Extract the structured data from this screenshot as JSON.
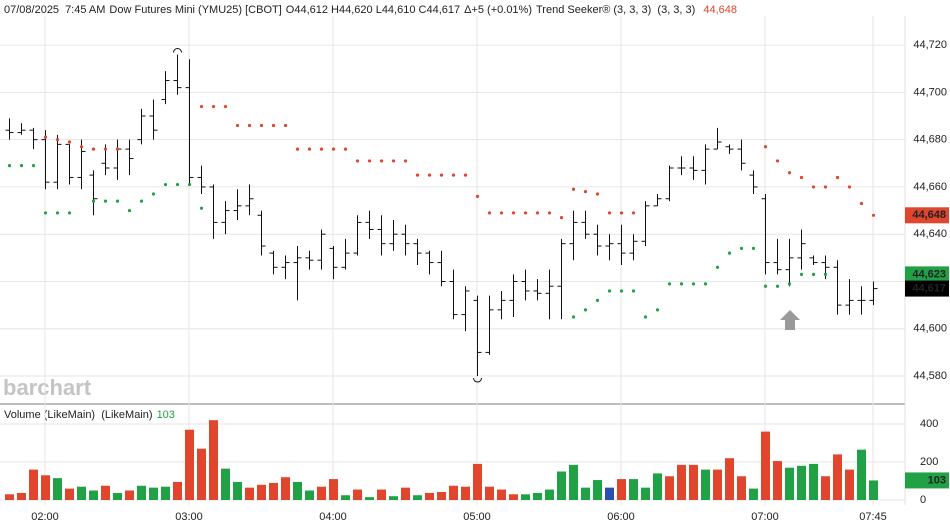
{
  "header": {
    "date": "07/08/2025",
    "time": "7:45 AM",
    "symbol": "Dow Futures Mini (YMU25) [CBOT]",
    "ohlc": "O44,612 H44,620 L44,610 C44,617",
    "change": "Δ+5 (+0.01%)",
    "study": "Trend Seeker® (3, 3, 3)  (3, 3, 3)",
    "study_value": "44,648",
    "study_value_color": "#e0452e"
  },
  "watermark": "barchart",
  "chart_data": [
    {
      "type": "ohlc",
      "ylim": [
        44568.6,
        44732.3
      ],
      "yticks": [
        {
          "value": 44580,
          "label": "44,580"
        },
        {
          "value": 44600,
          "label": "44,600"
        },
        {
          "value": 44620,
          "label": "44,620"
        },
        {
          "value": 44640,
          "label": "44,640"
        },
        {
          "value": 44660,
          "label": "44,660"
        },
        {
          "value": 44680,
          "label": "44,680"
        },
        {
          "value": 44700,
          "label": "44,700"
        },
        {
          "value": 44720,
          "label": "44,720"
        }
      ],
      "grid": true,
      "color": "#111111",
      "open": [
        44684,
        44683,
        44684,
        44680,
        44662,
        44678,
        44664,
        44665,
        44670,
        44668,
        44676,
        44680,
        44690,
        44697,
        44705,
        44702,
        44664,
        44660,
        44645,
        44650,
        44652,
        44648,
        44632,
        44626,
        44628,
        44630,
        44629,
        44634,
        44626,
        44632,
        44645,
        44642,
        44636,
        44640,
        44636,
        44632,
        44628,
        44620,
        44606,
        44612,
        44590,
        44608,
        44612,
        44620,
        44616,
        44615,
        44618,
        44636,
        44645,
        44640,
        44635,
        44636,
        44632,
        44637,
        44652,
        44655,
        44668,
        44668,
        44667,
        44676,
        44677,
        44676,
        44665,
        44655,
        44628,
        44625,
        44630,
        44630,
        44628,
        44626,
        44610,
        44612,
        44612
      ],
      "high": [
        44689,
        44687,
        44685,
        44684,
        44682,
        44678,
        44680,
        44667,
        44678,
        44680,
        44680,
        44693,
        44697,
        44709,
        44716,
        44714,
        44669,
        44661,
        44654,
        44659,
        44661,
        44650,
        44633,
        44631,
        44635,
        44633,
        44642,
        44635,
        44638,
        44648,
        44650,
        44648,
        44646,
        44644,
        44638,
        44633,
        44633,
        44625,
        44618,
        44614,
        44614,
        44616,
        44623,
        44625,
        44621,
        44625,
        44638,
        44650,
        44650,
        44644,
        44640,
        44644,
        44640,
        44654,
        44657,
        44669,
        44673,
        44673,
        44678,
        44685,
        44678,
        44680,
        44667,
        44657,
        44638,
        44638,
        44642,
        44631,
        44631,
        44629,
        44621,
        44618,
        44620
      ],
      "low": [
        44680,
        44682,
        44676,
        44659,
        44659,
        44661,
        44659,
        44648,
        44665,
        44663,
        44665,
        44678,
        44680,
        44695,
        44699,
        44661,
        44657,
        44638,
        44640,
        44646,
        44648,
        44631,
        44623,
        44621,
        44612,
        44625,
        44625,
        44621,
        44625,
        44631,
        44638,
        44631,
        44633,
        44631,
        44627,
        44623,
        44618,
        44604,
        44599,
        44580,
        44589,
        44604,
        44605,
        44612,
        44612,
        44604,
        44604,
        44629,
        44638,
        44631,
        44629,
        44627,
        44629,
        44635,
        44652,
        44654,
        44665,
        44663,
        44661,
        44676,
        44674,
        44667,
        44657,
        44623,
        44623,
        44618,
        44625,
        44627,
        44621,
        44606,
        44606,
        44606,
        44610
      ],
      "close": [
        44683,
        44684,
        44680,
        44662,
        44678,
        44664,
        44675,
        44655,
        44668,
        44676,
        44672,
        44690,
        44684,
        44705,
        44702,
        44664,
        44660,
        44645,
        44650,
        44652,
        44655,
        44635,
        44626,
        44628,
        44630,
        44629,
        44640,
        44626,
        44632,
        44645,
        44642,
        44636,
        44640,
        44636,
        44632,
        44628,
        44620,
        44606,
        44616,
        44590,
        44608,
        44612,
        44620,
        44616,
        44615,
        44618,
        44636,
        44645,
        44640,
        44635,
        44636,
        44632,
        44637,
        44652,
        44655,
        44668,
        44668,
        44667,
        44676,
        44679,
        44676,
        44670,
        44660,
        44628,
        44625,
        44630,
        44636,
        44628,
        44626,
        44610,
        44612,
        44612,
        44617
      ],
      "indicators": [
        {
          "color": "#e0452e",
          "values": [
            null,
            null,
            null,
            44681,
            44680,
            44679,
            44677,
            44676,
            44676,
            44676,
            null,
            null,
            null,
            null,
            null,
            null,
            44694,
            44694,
            44694,
            44686,
            44686,
            44686,
            44686,
            44686,
            44676,
            44676,
            44676,
            44676,
            44676,
            44671,
            44671,
            44671,
            44671,
            44671,
            44665,
            44665,
            44665,
            44665,
            44665,
            44656,
            44649,
            44649,
            44649,
            44649,
            44649,
            44649,
            44647,
            44659,
            44658,
            44657,
            44649,
            44649,
            44649,
            null,
            null,
            null,
            null,
            null,
            null,
            null,
            null,
            null,
            null,
            44677,
            44671,
            44666,
            44664,
            44660,
            44660,
            44664,
            44660,
            44653,
            44648
          ]
        },
        {
          "color": "#21a145",
          "values": [
            44669,
            44669,
            44669,
            44649,
            44649,
            44649,
            null,
            44654,
            44654,
            44654,
            44650,
            44654,
            44657,
            44661,
            44661,
            44661,
            44651,
            null,
            null,
            null,
            null,
            null,
            null,
            null,
            null,
            null,
            null,
            null,
            null,
            null,
            null,
            null,
            null,
            null,
            null,
            null,
            null,
            null,
            null,
            null,
            null,
            null,
            null,
            null,
            null,
            null,
            null,
            44605,
            44608,
            44612,
            44616,
            44616,
            44616,
            44605,
            44608,
            44619,
            44619,
            44619,
            44619,
            44626,
            44632,
            44634,
            44634,
            44618,
            44618,
            44619,
            44623,
            44623,
            44623,
            null,
            null,
            null,
            null
          ]
        }
      ],
      "value_labels": [
        {
          "value": 44648,
          "label": "44,648",
          "color": "#e0452e"
        },
        {
          "value": 44623,
          "label": "44,623",
          "color": "#21a145"
        },
        {
          "value": 44617,
          "label": "44,617",
          "color": "#000000"
        }
      ]
    },
    {
      "type": "bar",
      "title": "Volume (LikeMain)  (LikeMain)",
      "last_label": "103",
      "last_label_color": "#21a145",
      "ylim": [
        0,
        500
      ],
      "yticks": [
        0,
        200,
        400
      ],
      "grid": true,
      "categories": [
        null,
        null,
        null,
        "02:00",
        null,
        null,
        null,
        null,
        null,
        null,
        null,
        null,
        null,
        null,
        null,
        "03:00",
        null,
        null,
        null,
        null,
        null,
        null,
        null,
        null,
        null,
        null,
        null,
        "04:00",
        null,
        null,
        null,
        null,
        null,
        null,
        null,
        null,
        null,
        null,
        null,
        "05:00",
        null,
        null,
        null,
        null,
        null,
        null,
        null,
        null,
        null,
        null,
        null,
        "06:00",
        null,
        null,
        null,
        null,
        null,
        null,
        null,
        null,
        null,
        null,
        null,
        "07:00",
        null,
        null,
        null,
        null,
        null,
        null,
        null,
        null,
        "07:45"
      ],
      "values": [
        30,
        37,
        160,
        130,
        115,
        60,
        70,
        50,
        75,
        37,
        50,
        75,
        65,
        70,
        95,
        370,
        270,
        420,
        165,
        95,
        65,
        80,
        90,
        120,
        95,
        50,
        70,
        110,
        25,
        55,
        15,
        55,
        20,
        65,
        25,
        37,
        42,
        75,
        70,
        190,
        70,
        55,
        30,
        30,
        37,
        55,
        150,
        185,
        65,
        105,
        65,
        110,
        110,
        65,
        140,
        125,
        185,
        185,
        160,
        160,
        220,
        125,
        60,
        360,
        205,
        170,
        180,
        190,
        125,
        240,
        160,
        265,
        103
      ],
      "colors": [
        "#e0452e",
        "#e0452e",
        "#e0452e",
        "#e0452e",
        "#21a145",
        "#e0452e",
        "#21a145",
        "#21a145",
        "#e0452e",
        "#21a145",
        "#e0452e",
        "#21a145",
        "#21a145",
        "#21a145",
        "#e0452e",
        "#e0452e",
        "#e0452e",
        "#e0452e",
        "#21a145",
        "#21a145",
        "#e0452e",
        "#e0452e",
        "#e0452e",
        "#e0452e",
        "#21a145",
        "#21a145",
        "#e0452e",
        "#e0452e",
        "#21a145",
        "#e0452e",
        "#21a145",
        "#e0452e",
        "#21a145",
        "#e0452e",
        "#21a145",
        "#e0452e",
        "#e0452e",
        "#e0452e",
        "#e0452e",
        "#e0452e",
        "#e0452e",
        "#e0452e",
        "#e0452e",
        "#21a145",
        "#21a145",
        "#21a145",
        "#21a145",
        "#21a145",
        "#21a145",
        "#21a145",
        "#2a4fb0",
        "#e0452e",
        "#21a145",
        "#21a145",
        "#21a145",
        "#e0452e",
        "#e0452e",
        "#e0452e",
        "#21a145",
        "#e0452e",
        "#e0452e",
        "#e0452e",
        "#21a145",
        "#e0452e",
        "#e0452e",
        "#21a145",
        "#21a145",
        "#21a145",
        "#e0452e",
        "#e0452e",
        "#e0452e",
        "#21a145",
        "#21a145"
      ]
    }
  ]
}
